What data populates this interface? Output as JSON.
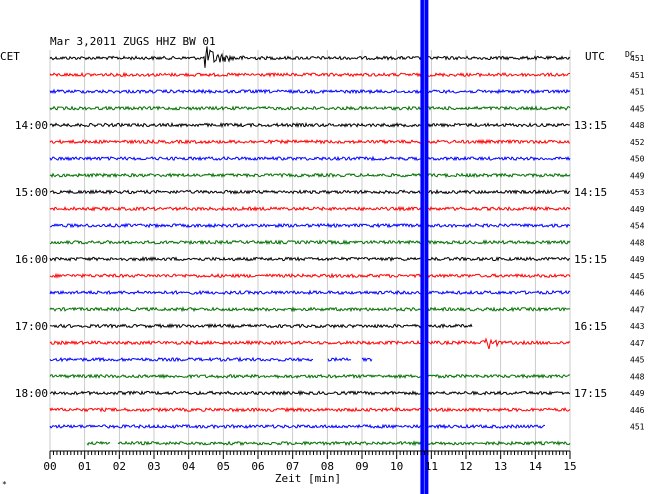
{
  "header": {
    "title": "Mar 3,2011   ZUGS HHZ BW 01",
    "left_timezone": "CET",
    "right_timezone": "UTC",
    "dc_label": "DC"
  },
  "colors": {
    "trace_cycle": [
      "#000000",
      "#ff0000",
      "#0000ff",
      "#007000"
    ],
    "grid": "#bfbfbf",
    "spike": "#0000ff"
  },
  "chart_data": {
    "type": "line",
    "title": "Mar 3,2011   ZUGS HHZ BW 01",
    "xlabel": "Zeit [min]",
    "xlim": [
      0,
      15
    ],
    "x_ticks": [
      "00",
      "01",
      "02",
      "03",
      "04",
      "05",
      "06",
      "07",
      "08",
      "09",
      "10",
      "11",
      "12",
      "13",
      "14",
      "15"
    ],
    "trace_interval_min": 15,
    "traces": [
      {
        "dc": "451",
        "cet": "",
        "utc": ""
      },
      {
        "dc": "451",
        "cet": "",
        "utc": ""
      },
      {
        "dc": "451",
        "cet": "",
        "utc": ""
      },
      {
        "dc": "445",
        "cet": "",
        "utc": ""
      },
      {
        "dc": "448",
        "cet": "14:00",
        "utc": "13:15"
      },
      {
        "dc": "452",
        "cet": "",
        "utc": ""
      },
      {
        "dc": "450",
        "cet": "",
        "utc": ""
      },
      {
        "dc": "449",
        "cet": "",
        "utc": ""
      },
      {
        "dc": "453",
        "cet": "15:00",
        "utc": "14:15"
      },
      {
        "dc": "449",
        "cet": "",
        "utc": ""
      },
      {
        "dc": "454",
        "cet": "",
        "utc": ""
      },
      {
        "dc": "448",
        "cet": "",
        "utc": ""
      },
      {
        "dc": "449",
        "cet": "16:00",
        "utc": "15:15"
      },
      {
        "dc": "445",
        "cet": "",
        "utc": ""
      },
      {
        "dc": "446",
        "cet": "",
        "utc": ""
      },
      {
        "dc": "447",
        "cet": "",
        "utc": ""
      },
      {
        "dc": "443",
        "cet": "17:00",
        "utc": "16:15"
      },
      {
        "dc": "447",
        "cet": "",
        "utc": ""
      },
      {
        "dc": "445",
        "cet": "",
        "utc": ""
      },
      {
        "dc": "448",
        "cet": "",
        "utc": ""
      },
      {
        "dc": "449",
        "cet": "18:00",
        "utc": "17:15"
      },
      {
        "dc": "446",
        "cet": "",
        "utc": ""
      },
      {
        "dc": "451",
        "cet": "",
        "utc": ""
      },
      {
        "dc": "",
        "cet": "",
        "utc": ""
      }
    ],
    "events": [
      {
        "trace": 0,
        "minute": 4.5,
        "type": "earthquake"
      },
      {
        "trace": 17,
        "minute": 12.7,
        "type": "burst"
      }
    ],
    "gaps": [
      {
        "trace": 16,
        "from_min": 12.2,
        "to_min": 15
      },
      {
        "trace": 18,
        "from_min": 7.6,
        "to_min": 8.0
      },
      {
        "trace": 18,
        "from_min": 8.7,
        "to_min": 9.0
      },
      {
        "trace": 18,
        "from_min": 9.3,
        "to_min": 15
      },
      {
        "trace": 22,
        "from_min": 14.3,
        "to_min": 15
      },
      {
        "trace": 23,
        "from_min": 0,
        "to_min": 1.05
      },
      {
        "trace": 23,
        "from_min": 1.75,
        "to_min": 1.95
      }
    ],
    "spike_minute": 10.8,
    "grid": true
  },
  "footer": {
    "corner_mark": "*"
  }
}
